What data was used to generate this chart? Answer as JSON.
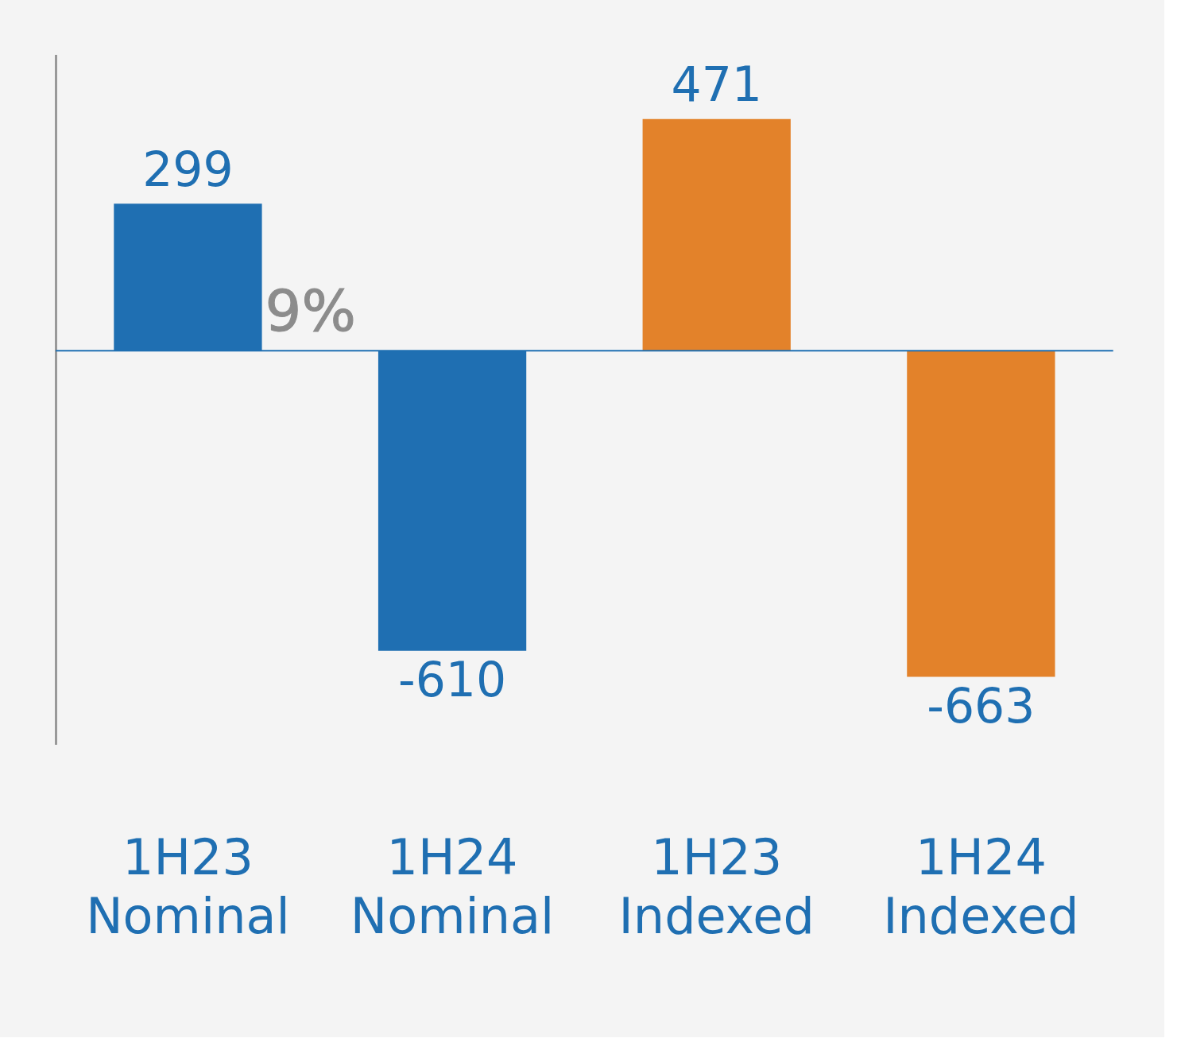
{
  "chart_data": {
    "type": "bar",
    "categories": [
      "1H23\nNominal",
      "1H24\nNominal",
      "1H23\nIndexed",
      "1H24\nIndexed"
    ],
    "values": [
      299,
      -610,
      471,
      -663
    ],
    "colors": [
      "#1f6fb2",
      "#1f6fb2",
      "#e3822a",
      "#e3822a"
    ],
    "data_labels": true,
    "grid": false,
    "legend": false,
    "ref_lines": [
      {
        "axis": "y",
        "value": 0,
        "color": "#1f6fb2"
      }
    ],
    "annotations": [
      "9%"
    ]
  }
}
